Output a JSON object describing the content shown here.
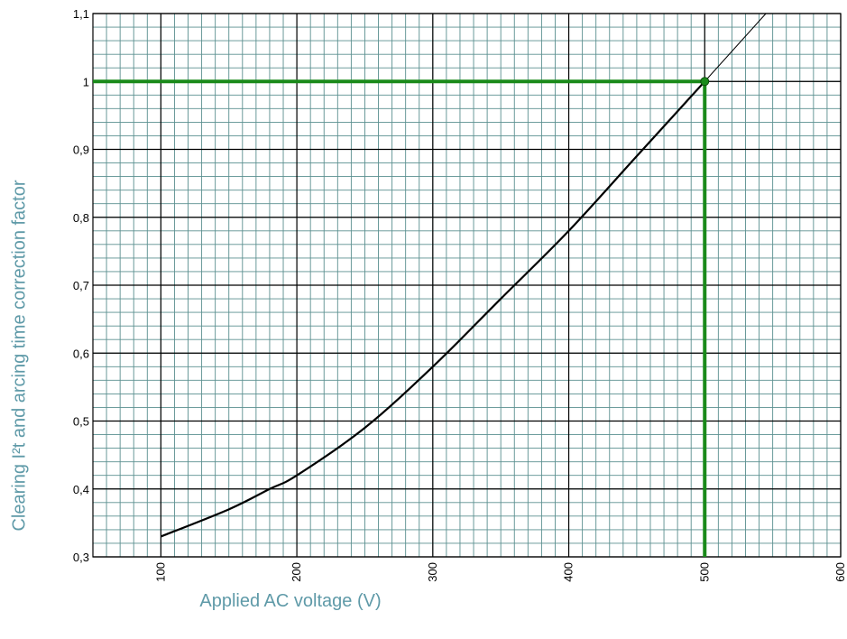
{
  "chart_data": {
    "type": "line",
    "title": "",
    "xlabel": "Applied AC voltage (V)",
    "ylabel": "Clearing I²t and arcing time correction factor",
    "xlim": [
      50,
      600
    ],
    "ylim": [
      0.3,
      1.1
    ],
    "x_ticks": [
      100,
      200,
      300,
      400,
      500,
      600
    ],
    "x_tick_labels": [
      "100",
      "200",
      "300",
      "400",
      "500",
      "600"
    ],
    "y_ticks": [
      0.3,
      0.4,
      0.5,
      0.6,
      0.7,
      0.8,
      0.9,
      1.0,
      1.1
    ],
    "y_tick_labels": [
      "0,3",
      "0,4",
      "0,5",
      "0,6",
      "0,7",
      "0,8",
      "0,9",
      "1",
      "1,1"
    ],
    "grid": true,
    "series": [
      {
        "color": "#000000",
        "x": [
          100,
          150,
          180,
          200,
          250,
          300,
          350,
          400,
          450,
          500
        ],
        "y": [
          0.33,
          0.37,
          0.4,
          0.42,
          0.49,
          0.58,
          0.68,
          0.78,
          0.89,
          1.0
        ]
      },
      {
        "style": "thin-extension",
        "color": "#000000",
        "x": [
          500,
          545
        ],
        "y": [
          1.0,
          1.1
        ]
      }
    ],
    "highlight": {
      "color": "#1a8a1a",
      "point": {
        "x": 500,
        "y": 1.0
      },
      "horizontal_line_y": 1.0,
      "vertical_line_x": 500
    },
    "colors": {
      "minor_grid": "#5a8f8f",
      "major_grid": "#000000",
      "axis_label": "#5f9aa8"
    }
  }
}
